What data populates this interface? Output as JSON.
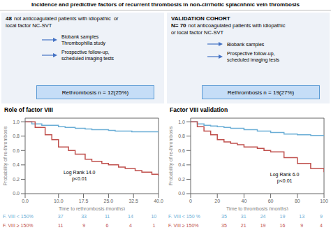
{
  "title": "Incidence and predictive factors of recurrent thrombosis in non-cirrhotic splacnhnic vein thrombosis",
  "panels": [
    {
      "bold": [
        "48"
      ],
      "text": [
        "not anticoagulated patients with idiopathic  or",
        "local factor NC-SVT"
      ],
      "annotations": [
        "Biobank samples\nThrombophilia study",
        "Prospective follow-up,\nscheduled imaging tests"
      ],
      "box": "Rethrombosis n = 12(25%)"
    },
    {
      "bold": [
        "VALIDATION COHORT",
        "N= 70"
      ],
      "text": [
        "not anticoagulated patients with idiopathic",
        "or local factor NC-SVT"
      ],
      "annotations": [
        "Biobank samples",
        "Prospective follow-up,\nscheduled imaging tests"
      ],
      "box": "Rethrombosis n = 19(27%)"
    }
  ],
  "chart_data": [
    {
      "type": "line",
      "title": "Role of factor VIII",
      "x_label": "Time to rethrombosis (months)",
      "y_label": "Probability of re-thrombosis",
      "line_style": "step",
      "xlim": [
        0,
        40
      ],
      "ylim": [
        0,
        1.05
      ],
      "xticks": [
        {
          "value": 0,
          "label": "0.0"
        },
        {
          "value": 10,
          "label": "10.0"
        },
        17.5,
        {
          "value": 25,
          "label": "25.0"
        },
        32.5,
        {
          "value": 40,
          "label": "40.0"
        }
      ],
      "yticks": [
        {
          "value": 0,
          "label": "0.0"
        },
        0.2,
        0.4,
        0.6,
        0.8,
        {
          "value": 1,
          "label": "1.0"
        }
      ],
      "series": [
        {
          "color": "#6baed6",
          "x": [
            0,
            2,
            5,
            10,
            12,
            15,
            18,
            20,
            22,
            25,
            27,
            30,
            32,
            35,
            37,
            40
          ],
          "values": [
            1.0,
            0.97,
            0.95,
            0.93,
            0.92,
            0.91,
            0.9,
            0.89,
            0.89,
            0.88,
            0.87,
            0.87,
            0.86,
            0.86,
            0.86,
            0.86
          ]
        },
        {
          "color": "#c0504d",
          "x": [
            0,
            3,
            6,
            8,
            10,
            13,
            15,
            18,
            20,
            23,
            25,
            28,
            30,
            33,
            35,
            38,
            40
          ],
          "values": [
            1.0,
            0.92,
            0.82,
            0.75,
            0.65,
            0.6,
            0.55,
            0.48,
            0.45,
            0.42,
            0.4,
            0.37,
            0.35,
            0.32,
            0.3,
            0.27,
            0.25
          ]
        }
      ],
      "annotations": [
        "Log Rank 14.0\np<0.01"
      ],
      "table": [
        {
          "name": "F. VIII < 150%",
          "color": "#6baed6",
          "values": [
            37,
            33,
            11,
            14,
            10
          ]
        },
        {
          "name": "F. VIII ≥ 150%",
          "color": "#c0504d",
          "values": [
            11,
            9,
            6,
            4,
            1
          ]
        }
      ]
    },
    {
      "type": "line",
      "title": "Factor VIII validation",
      "x_label": "Time to thrombosis (months)",
      "y_label": "Probability of re-thrombosis",
      "line_style": "step",
      "xlim": [
        0,
        100
      ],
      "ylim": [
        0,
        1.05
      ],
      "xticks": [
        0,
        20,
        40,
        60,
        80,
        100
      ],
      "yticks": [
        {
          "value": 0,
          "label": "0.0"
        },
        0.2,
        0.4,
        0.6,
        0.8,
        {
          "value": 1,
          "label": "1.0"
        }
      ],
      "series": [
        {
          "color": "#6baed6",
          "x": [
            0,
            5,
            10,
            15,
            20,
            25,
            30,
            40,
            50,
            60,
            70,
            80,
            90,
            100
          ],
          "values": [
            1.0,
            0.97,
            0.95,
            0.94,
            0.93,
            0.92,
            0.91,
            0.89,
            0.87,
            0.85,
            0.83,
            0.82,
            0.81,
            0.8
          ]
        },
        {
          "color": "#c0504d",
          "x": [
            0,
            5,
            10,
            15,
            20,
            25,
            30,
            35,
            40,
            50,
            55,
            60,
            70,
            80,
            90,
            100
          ],
          "values": [
            1.0,
            0.93,
            0.87,
            0.82,
            0.75,
            0.72,
            0.7,
            0.68,
            0.65,
            0.63,
            0.6,
            0.58,
            0.5,
            0.42,
            0.35,
            0.3
          ]
        }
      ],
      "annotations": [
        "Log Rank 6.0\np<0.01"
      ],
      "table": [
        {
          "name": "F. VIII < 150 %",
          "color": "#6baed6",
          "values": [
            35,
            31,
            24,
            19,
            13,
            9
          ]
        },
        {
          "name": "F. VIII ≥ 150%",
          "color": "#c0504d",
          "values": [
            35,
            21,
            19,
            16,
            9,
            4
          ]
        }
      ]
    }
  ]
}
